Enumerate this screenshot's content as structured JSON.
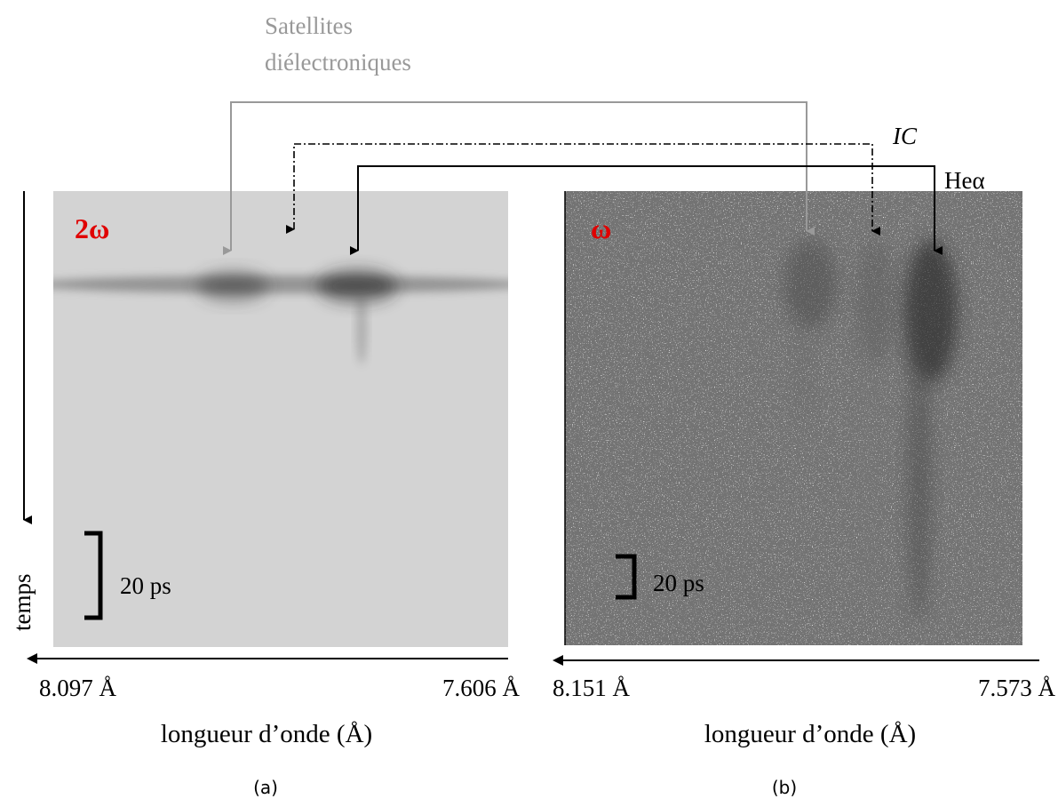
{
  "annotations": {
    "satellites": [
      "Satellites",
      "diélectroniques"
    ],
    "ic": "IC",
    "he_alpha": "Heα"
  },
  "time_axis": "temps",
  "panels": [
    {
      "label": "2ω",
      "scale": "20 ps",
      "x_left": "8.097 Å",
      "x_right": "7.606 Å",
      "x_title": "longueur d’onde (Å)",
      "caption": "(a)"
    },
    {
      "label": "ω",
      "scale": "20 ps",
      "x_left": "8.151 Å",
      "x_right": "7.573 Å",
      "x_title": "longueur d’onde (Å)",
      "caption": "(b)"
    }
  ]
}
